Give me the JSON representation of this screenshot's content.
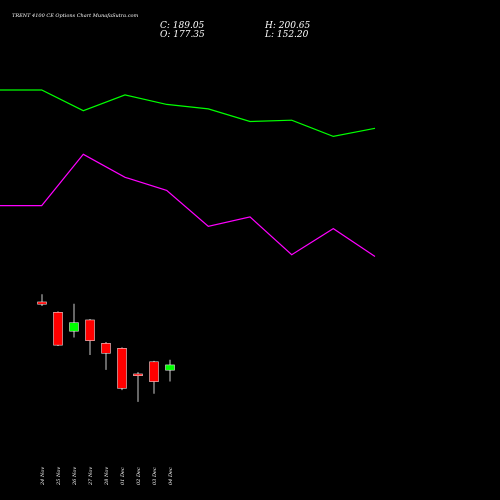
{
  "header": {
    "title": "TRENT 4100  CE Options  Chart MunafaSutra.com",
    "close": "C: 189.05",
    "high": "H: 200.65",
    "open": "O: 177.35",
    "low": "L: 152.20"
  },
  "chart_data": {
    "type": "candlestick",
    "title": "TRENT 4100  CE Options  Chart MunafaSutra.com",
    "categories": [
      "24 Nov",
      "25 Nov",
      "26 Nov",
      "27 Nov",
      "28 Nov",
      "01 Dec",
      "02 Dec",
      "03 Dec",
      "04 Dec"
    ],
    "ohlc": [
      {
        "open": 329,
        "high": 346,
        "low": 320,
        "close": 324
      },
      {
        "open": 306,
        "high": 308,
        "low": 231,
        "close": 233
      },
      {
        "open": 264,
        "high": 325,
        "low": 250,
        "close": 283
      },
      {
        "open": 289,
        "high": 291,
        "low": 211,
        "close": 243
      },
      {
        "open": 237,
        "high": 240,
        "low": 178,
        "close": 215
      },
      {
        "open": 226,
        "high": 228,
        "low": 133,
        "close": 137
      },
      {
        "open": 169,
        "high": 173,
        "low": 107,
        "close": 165
      },
      {
        "open": 196,
        "high": 198,
        "low": 125,
        "close": 152
      },
      {
        "open": 177.35,
        "high": 200.65,
        "low": 152.2,
        "close": 189.05
      }
    ],
    "overlay_lines": [
      {
        "color": "#00ff00",
        "values": [
          800,
          800,
          754,
          789,
          768,
          758,
          730,
          733,
          697,
          715
        ]
      },
      {
        "color": "#ff00ff",
        "values": [
          543,
          543,
          657,
          606,
          577,
          497,
          518,
          434,
          492,
          430
        ]
      }
    ],
    "ylim": [
      0,
      1000
    ],
    "grid": false,
    "colors": {
      "up": "#00ff00",
      "down": "#ff0000",
      "background": "#000000"
    }
  }
}
